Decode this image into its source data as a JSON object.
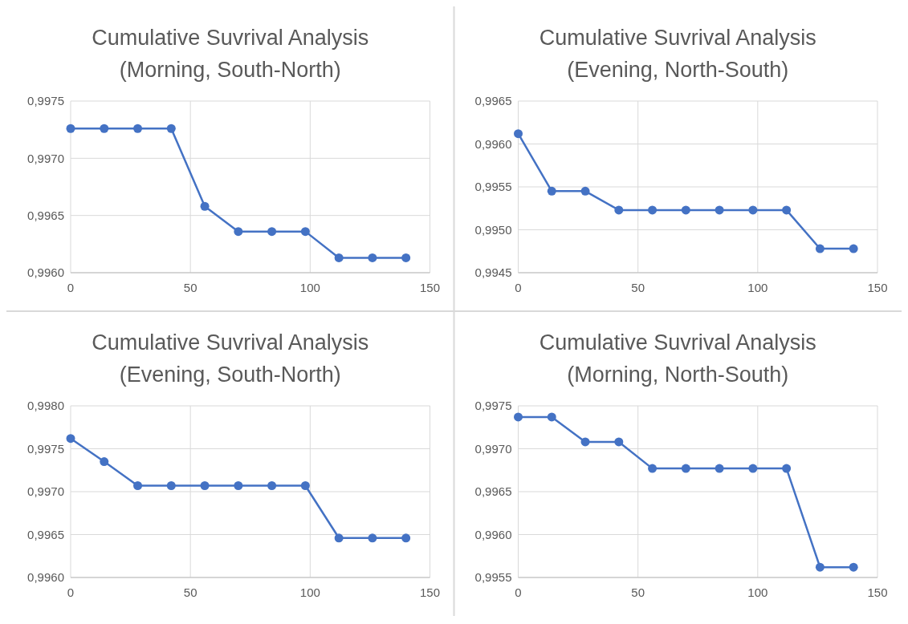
{
  "chart_data": [
    {
      "type": "line",
      "title": "Cumulative Suvrival Analysis",
      "subtitle": "(Morning, South-North)",
      "x": [
        0,
        14,
        28,
        42,
        56,
        70,
        84,
        98,
        112,
        126,
        140
      ],
      "series": [
        {
          "color": "#4472c4",
          "values": [
            0.99726,
            0.99726,
            0.99726,
            0.99726,
            0.99658,
            0.99636,
            0.99636,
            0.99636,
            0.99613,
            0.99613,
            0.99613
          ]
        }
      ],
      "xlim": [
        0,
        150
      ],
      "xticks": [
        0,
        50,
        100,
        150
      ],
      "ylim": [
        0.996,
        0.9975
      ],
      "yticks": [
        {
          "value": 0.996,
          "label": "0,9960"
        },
        {
          "value": 0.9965,
          "label": "0,9965"
        },
        {
          "value": 0.997,
          "label": "0,9970"
        },
        {
          "value": 0.9975,
          "label": "0,9975"
        }
      ],
      "grid": true,
      "marker": "circle"
    },
    {
      "type": "line",
      "title": "Cumulative Suvrival Analysis",
      "subtitle": "(Evening, North-South)",
      "x": [
        0,
        14,
        28,
        42,
        56,
        70,
        84,
        98,
        112,
        126,
        140
      ],
      "series": [
        {
          "color": "#4472c4",
          "values": [
            0.99612,
            0.99545,
            0.99545,
            0.99523,
            0.99523,
            0.99523,
            0.99523,
            0.99523,
            0.99523,
            0.99478,
            0.99478
          ]
        }
      ],
      "xlim": [
        0,
        150
      ],
      "xticks": [
        0,
        50,
        100,
        150
      ],
      "ylim": [
        0.9945,
        0.9965
      ],
      "yticks": [
        {
          "value": 0.9945,
          "label": "0,9945"
        },
        {
          "value": 0.995,
          "label": "0,9950"
        },
        {
          "value": 0.9955,
          "label": "0,9955"
        },
        {
          "value": 0.996,
          "label": "0,9960"
        },
        {
          "value": 0.9965,
          "label": "0,9965"
        }
      ],
      "grid": true,
      "marker": "circle"
    },
    {
      "type": "line",
      "title": "Cumulative Suvrival Analysis",
      "subtitle": "(Evening, South-North)",
      "x": [
        0,
        14,
        28,
        42,
        56,
        70,
        84,
        98,
        112,
        126,
        140
      ],
      "series": [
        {
          "color": "#4472c4",
          "values": [
            0.99762,
            0.99735,
            0.99707,
            0.99707,
            0.99707,
            0.99707,
            0.99707,
            0.99707,
            0.99646,
            0.99646,
            0.99646
          ]
        }
      ],
      "xlim": [
        0,
        150
      ],
      "xticks": [
        0,
        50,
        100,
        150
      ],
      "ylim": [
        0.996,
        0.998
      ],
      "yticks": [
        {
          "value": 0.996,
          "label": "0,9960"
        },
        {
          "value": 0.9965,
          "label": "0,9965"
        },
        {
          "value": 0.997,
          "label": "0,9970"
        },
        {
          "value": 0.9975,
          "label": "0,9975"
        },
        {
          "value": 0.998,
          "label": "0,9980"
        }
      ],
      "grid": true,
      "marker": "circle"
    },
    {
      "type": "line",
      "title": "Cumulative Suvrival Analysis",
      "subtitle": "(Morning, North-South)",
      "x": [
        0,
        14,
        28,
        42,
        56,
        70,
        84,
        98,
        112,
        126,
        140
      ],
      "series": [
        {
          "color": "#4472c4",
          "values": [
            0.99737,
            0.99737,
            0.99708,
            0.99708,
            0.99677,
            0.99677,
            0.99677,
            0.99677,
            0.99677,
            0.99562,
            0.99562
          ]
        }
      ],
      "xlim": [
        0,
        150
      ],
      "xticks": [
        0,
        50,
        100,
        150
      ],
      "ylim": [
        0.9955,
        0.9975
      ],
      "yticks": [
        {
          "value": 0.9955,
          "label": "0,9955"
        },
        {
          "value": 0.996,
          "label": "0,9960"
        },
        {
          "value": 0.9965,
          "label": "0,9965"
        },
        {
          "value": 0.997,
          "label": "0,9970"
        },
        {
          "value": 0.9975,
          "label": "0,9975"
        }
      ],
      "grid": true,
      "marker": "circle"
    }
  ]
}
